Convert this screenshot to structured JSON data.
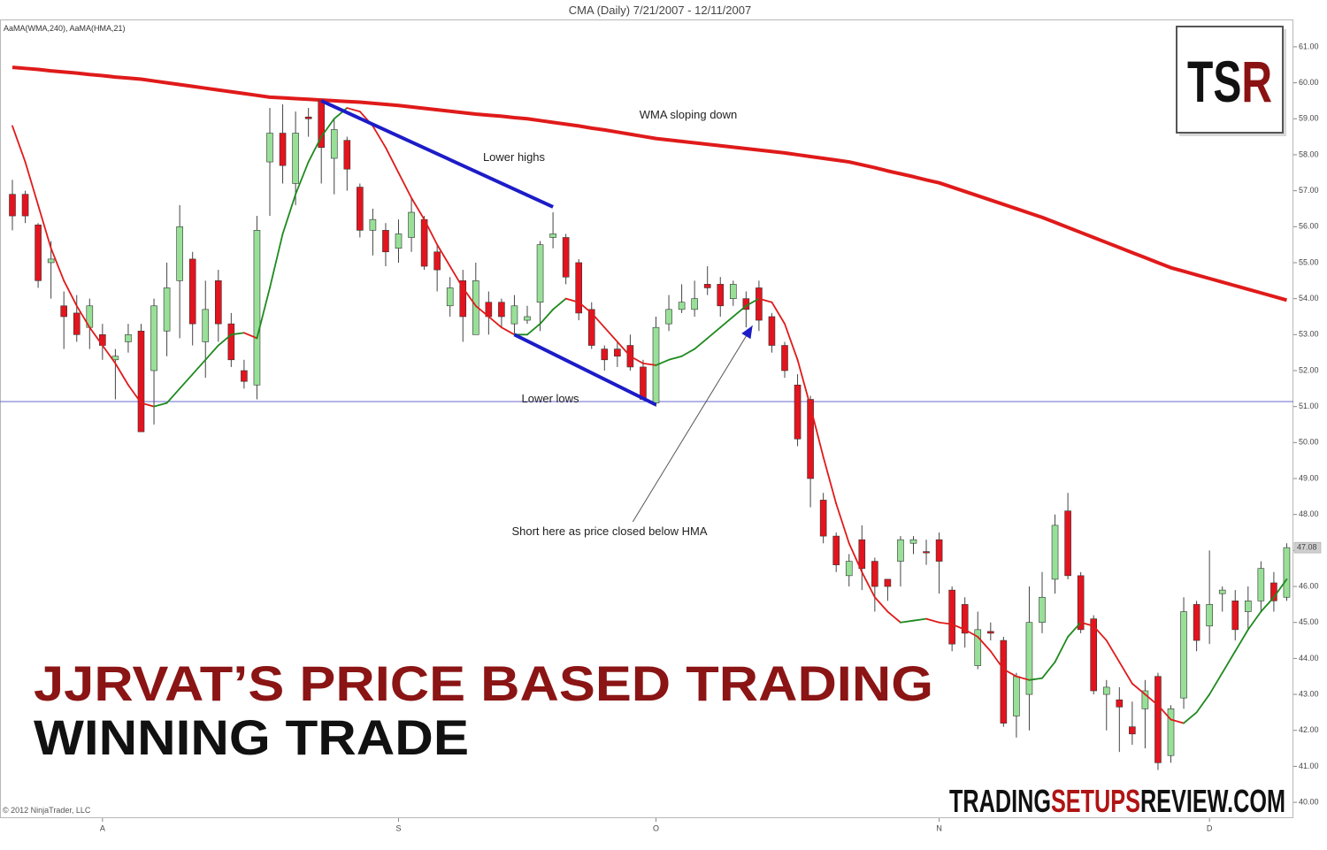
{
  "chart_data": {
    "type": "candlestick",
    "title": "CMA (Daily)  7/21/2007 - 12/11/2007",
    "indicator_label": "AaMA(WMA,240), AaMA(HMA,21)",
    "copyright": "© 2012 NinjaTrader, LLC",
    "headline": "JJRVAT’S PRICE BASED TRADING",
    "subheadline": "WINNING TRADE",
    "logo": {
      "left": "TS",
      "right": "R"
    },
    "website": {
      "part1": "TRADING",
      "part2": "SETUPS",
      "part3": "REVIEW.COM"
    },
    "annotations": [
      "WMA sloping down",
      "Lower highs",
      "Lower lows",
      "Short here as price closed below HMA"
    ],
    "categories": [
      null,
      null,
      null,
      null,
      null,
      null,
      null,
      "A",
      null,
      null,
      null,
      null,
      null,
      null,
      null,
      null,
      null,
      null,
      null,
      null,
      null,
      null,
      null,
      null,
      null,
      null,
      null,
      null,
      null,
      null,
      "S",
      null,
      null,
      null,
      null,
      null,
      null,
      null,
      null,
      null,
      null,
      null,
      null,
      null,
      null,
      null,
      null,
      null,
      null,
      null,
      "O",
      null,
      null,
      null,
      null,
      null,
      null,
      null,
      null,
      null,
      null,
      null,
      null,
      null,
      null,
      null,
      null,
      null,
      null,
      null,
      null,
      null,
      "N",
      null,
      null,
      null,
      null,
      null,
      null,
      null,
      null,
      null,
      null,
      null,
      null,
      null,
      null,
      null,
      null,
      null,
      null,
      null,
      null,
      "D",
      null,
      null,
      null,
      null,
      null,
      null
    ],
    "open": [
      56.9,
      56.9,
      56.05,
      55.0,
      53.8,
      53.6,
      53.2,
      53.0,
      52.3,
      52.8,
      53.1,
      52.0,
      53.1,
      54.5,
      55.1,
      52.8,
      54.5,
      53.3,
      52.0,
      51.6,
      57.8,
      58.6,
      57.2,
      59.05,
      59.5,
      57.9,
      58.4,
      57.1,
      55.9,
      55.9,
      55.4,
      55.7,
      56.2,
      55.3,
      53.8,
      54.5,
      53.0,
      53.9,
      53.9,
      53.3,
      53.4,
      53.9,
      55.7,
      55.7,
      55.0,
      53.7,
      52.6,
      52.6,
      52.7,
      52.1,
      51.1,
      53.3,
      53.7,
      53.7,
      54.4,
      54.4,
      54.0,
      54.0,
      54.3,
      53.5,
      52.7,
      51.6,
      51.2,
      48.4,
      47.4,
      46.3,
      47.3,
      46.7,
      46.2,
      46.7,
      47.2,
      46.97,
      47.3,
      45.9,
      45.5,
      43.8,
      44.75,
      44.5,
      42.4,
      43.0,
      45.0,
      46.2,
      48.1,
      46.3,
      45.1,
      43.0,
      42.85,
      42.1,
      42.6,
      43.5,
      41.3,
      42.9,
      45.5,
      44.9,
      45.8,
      45.6,
      45.3,
      45.6,
      46.1,
      45.7
    ],
    "high": [
      57.3,
      57.0,
      56.1,
      55.6,
      54.2,
      54.1,
      54.0,
      53.3,
      52.6,
      53.3,
      53.3,
      54.0,
      55.0,
      56.6,
      55.3,
      54.5,
      54.8,
      53.6,
      52.3,
      56.3,
      59.3,
      59.4,
      59.2,
      59.3,
      59.5,
      59.0,
      58.5,
      57.2,
      56.5,
      56.1,
      56.2,
      56.8,
      56.3,
      55.5,
      54.6,
      54.8,
      55.0,
      54.2,
      54.0,
      54.1,
      53.8,
      55.6,
      56.4,
      55.8,
      55.1,
      53.9,
      52.7,
      52.8,
      53.0,
      52.3,
      53.5,
      54.1,
      54.4,
      54.5,
      54.9,
      54.6,
      54.5,
      54.2,
      54.5,
      53.6,
      52.8,
      51.9,
      51.3,
      48.6,
      47.5,
      46.9,
      47.7,
      46.8,
      46.2,
      47.4,
      47.4,
      47.3,
      47.5,
      46.0,
      45.7,
      45.3,
      45.0,
      44.6,
      43.6,
      46.0,
      46.4,
      48.0,
      48.6,
      46.4,
      45.2,
      43.4,
      43.2,
      42.8,
      43.4,
      43.6,
      42.7,
      45.7,
      45.6,
      47.0,
      46.0,
      45.9,
      46.0,
      46.7,
      46.4,
      47.2
    ],
    "low": [
      55.9,
      56.1,
      54.3,
      54.0,
      52.6,
      52.8,
      52.6,
      52.3,
      51.2,
      52.5,
      50.3,
      50.5,
      52.4,
      52.9,
      52.7,
      51.8,
      52.8,
      52.1,
      51.5,
      51.2,
      56.3,
      57.2,
      56.6,
      58.5,
      57.2,
      56.9,
      57.0,
      55.7,
      55.2,
      54.9,
      55.0,
      55.3,
      54.8,
      54.2,
      53.5,
      52.8,
      53.0,
      53.0,
      53.2,
      53.0,
      53.3,
      53.1,
      55.4,
      54.4,
      53.4,
      52.6,
      52.0,
      52.1,
      52.0,
      51.2,
      51.0,
      53.1,
      53.6,
      53.5,
      54.1,
      53.5,
      53.8,
      53.2,
      53.1,
      52.5,
      51.8,
      49.9,
      48.2,
      47.2,
      46.4,
      46.0,
      45.9,
      45.3,
      45.6,
      46.0,
      46.9,
      46.6,
      45.8,
      44.2,
      44.3,
      43.7,
      44.5,
      42.1,
      41.8,
      42.0,
      44.7,
      45.8,
      46.2,
      44.7,
      43.0,
      42.0,
      41.4,
      41.6,
      41.5,
      40.9,
      41.1,
      42.6,
      44.2,
      44.4,
      45.3,
      44.5,
      44.8,
      45.3,
      45.3,
      45.6
    ],
    "close": [
      56.3,
      56.3,
      54.5,
      55.1,
      53.5,
      53.0,
      53.8,
      52.7,
      52.4,
      53.0,
      50.3,
      53.8,
      54.3,
      56.0,
      53.3,
      53.7,
      53.3,
      52.3,
      51.7,
      55.9,
      58.6,
      57.7,
      58.6,
      59.0,
      58.2,
      58.7,
      57.6,
      55.9,
      56.2,
      55.3,
      55.8,
      56.4,
      54.9,
      54.8,
      54.3,
      53.5,
      54.5,
      53.5,
      53.5,
      53.8,
      53.5,
      55.5,
      55.8,
      54.6,
      53.6,
      52.7,
      52.3,
      52.4,
      52.1,
      51.2,
      53.2,
      53.7,
      53.9,
      54.0,
      54.3,
      53.8,
      54.4,
      53.7,
      53.4,
      52.7,
      52.0,
      50.1,
      49.0,
      47.4,
      46.6,
      46.7,
      46.5,
      46.0,
      46.0,
      47.3,
      47.3,
      46.95,
      46.7,
      44.4,
      44.7,
      44.8,
      44.7,
      42.2,
      43.5,
      45.0,
      45.7,
      47.7,
      46.3,
      44.8,
      43.1,
      43.2,
      42.65,
      41.9,
      43.1,
      41.1,
      42.6,
      45.3,
      44.5,
      45.5,
      45.9,
      44.8,
      45.6,
      46.5,
      45.6,
      47.08
    ],
    "up_color": "#98e098",
    "down_color": "#e3141e",
    "wma": {
      "color": "#e01a1a",
      "values": [
        60.43,
        60.4,
        60.37,
        60.33,
        60.3,
        60.27,
        60.23,
        60.2,
        60.16,
        60.13,
        60.1,
        60.05,
        60.0,
        59.95,
        59.9,
        59.85,
        59.8,
        59.75,
        59.7,
        59.65,
        59.6,
        59.58,
        59.56,
        59.54,
        59.52,
        59.5,
        59.48,
        59.46,
        59.43,
        59.4,
        59.37,
        59.33,
        59.29,
        59.25,
        59.21,
        59.17,
        59.13,
        59.1,
        59.07,
        59.03,
        59.0,
        58.95,
        58.9,
        58.85,
        58.8,
        58.74,
        58.69,
        58.63,
        58.57,
        58.51,
        58.45,
        58.41,
        58.37,
        58.33,
        58.29,
        58.25,
        58.21,
        58.17,
        58.13,
        58.09,
        58.05,
        58.0,
        57.95,
        57.9,
        57.85,
        57.8,
        57.72,
        57.64,
        57.55,
        57.47,
        57.39,
        57.3,
        57.22,
        57.1,
        56.98,
        56.86,
        56.74,
        56.62,
        56.5,
        56.38,
        56.26,
        56.12,
        55.98,
        55.84,
        55.7,
        55.56,
        55.42,
        55.28,
        55.14,
        55.0,
        54.86,
        54.76,
        54.66,
        54.56,
        54.46,
        54.36,
        54.26,
        54.16,
        54.06,
        53.96
      ]
    },
    "hma": {
      "up_color": "#1e8a1e",
      "down_color": "#e01a1a",
      "values": [
        58.8,
        57.8,
        56.6,
        55.4,
        54.5,
        53.8,
        53.2,
        52.7,
        52.2,
        51.6,
        51.1,
        51.0,
        51.1,
        51.5,
        51.9,
        52.3,
        52.7,
        53.0,
        53.05,
        52.9,
        54.3,
        55.8,
        56.9,
        57.8,
        58.5,
        59.0,
        59.3,
        59.2,
        58.8,
        58.2,
        57.5,
        56.8,
        56.2,
        55.5,
        54.9,
        54.3,
        53.8,
        53.5,
        53.2,
        53.0,
        53.0,
        53.3,
        53.7,
        54.0,
        53.9,
        53.6,
        53.2,
        52.8,
        52.4,
        52.2,
        52.15,
        52.3,
        52.4,
        52.6,
        52.9,
        53.2,
        53.5,
        53.8,
        54.0,
        53.9,
        53.3,
        52.3,
        51.0,
        49.6,
        48.3,
        47.2,
        46.4,
        45.7,
        45.3,
        45.0,
        45.05,
        45.1,
        45.0,
        44.95,
        44.8,
        44.6,
        44.2,
        43.7,
        43.5,
        43.4,
        43.45,
        43.9,
        44.6,
        45.0,
        44.9,
        44.5,
        43.9,
        43.3,
        43.0,
        42.7,
        42.3,
        42.2,
        42.5,
        43.0,
        43.6,
        44.2,
        44.8,
        45.3,
        45.7,
        46.2
      ]
    },
    "trendlines": [
      {
        "x": [
          24,
          42
        ],
        "values": [
          59.5,
          56.55
        ],
        "color": "#1c1cc8"
      },
      {
        "x": [
          39,
          50
        ],
        "values": [
          53.0,
          51.05
        ],
        "color": "#1c1cc8"
      }
    ],
    "hline": {
      "value": 51.14,
      "color": "#6a6ad0"
    },
    "arrow": {
      "x": [
        48.2,
        57.5
      ],
      "values": [
        47.8,
        53.25
      ],
      "color": "#1c1cc8"
    },
    "last_price": 47.08,
    "ylim": [
      39.56,
      61.76
    ],
    "yticks": [
      {
        "value": 40,
        "label": "40.00"
      },
      {
        "value": 41,
        "label": "41.00"
      },
      {
        "value": 42,
        "label": "42.00"
      },
      {
        "value": 43,
        "label": "43.00"
      },
      {
        "value": 44,
        "label": "44.00"
      },
      {
        "value": 45,
        "label": "45.00"
      },
      {
        "value": 46,
        "label": "46.00"
      },
      {
        "value": 47,
        "label": "47.00"
      },
      {
        "value": 48,
        "label": "48.00"
      },
      {
        "value": 49,
        "label": "49.00"
      },
      {
        "value": 50,
        "label": "50.00"
      },
      {
        "value": 51,
        "label": "51.00"
      },
      {
        "value": 52,
        "label": "52.00"
      },
      {
        "value": 53,
        "label": "53.00"
      },
      {
        "value": 54,
        "label": "54.00"
      },
      {
        "value": 55,
        "label": "55.00"
      },
      {
        "value": 56,
        "label": "56.00"
      },
      {
        "value": 57,
        "label": "57.00"
      },
      {
        "value": 58,
        "label": "58.00"
      },
      {
        "value": 59,
        "label": "59.00"
      },
      {
        "value": 60,
        "label": "60.00"
      },
      {
        "value": 61,
        "label": "61.00"
      }
    ]
  }
}
